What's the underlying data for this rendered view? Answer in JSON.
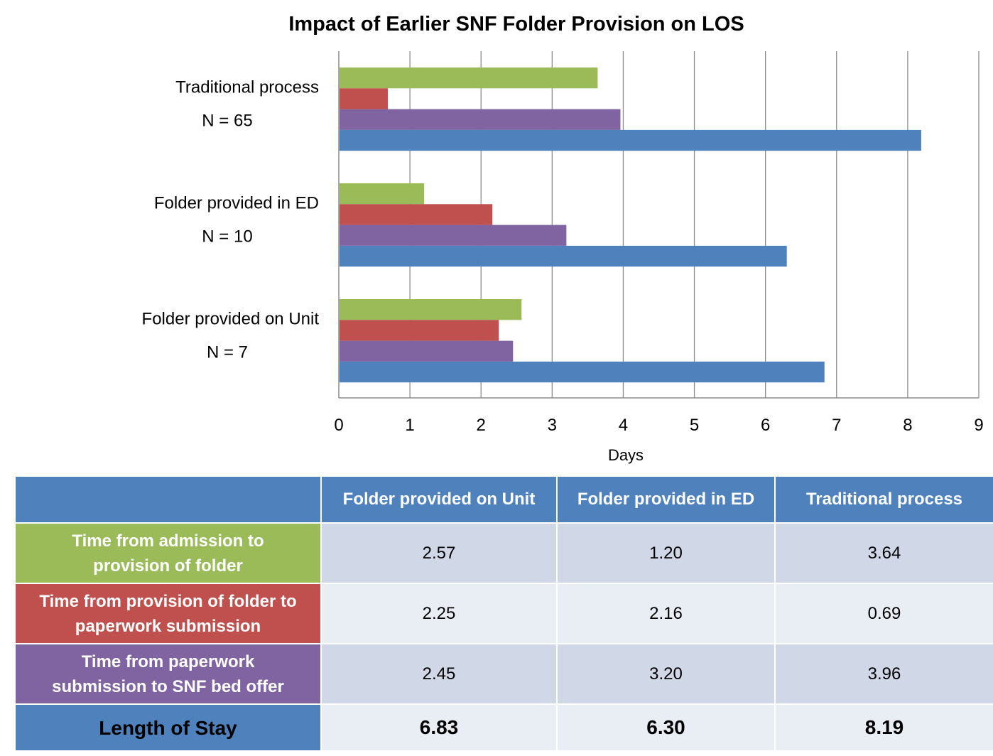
{
  "chart_data": {
    "type": "bar",
    "orientation": "horizontal",
    "title": "Impact of Earlier SNF Folder Provision on LOS",
    "xlabel": "Days",
    "ylabel": "",
    "xlim": [
      0,
      9
    ],
    "x_ticks": [
      "0",
      "1",
      "2",
      "3",
      "4",
      "5",
      "6",
      "7",
      "8",
      "9"
    ],
    "grid": "vertical",
    "legend": "none (table below acts as key)",
    "categories": [
      {
        "label": "Traditional process",
        "n_label": "N = 65"
      },
      {
        "label": "Folder provided in ED",
        "n_label": "N = 10"
      },
      {
        "label": "Folder provided on Unit",
        "n_label": "N = 7"
      }
    ],
    "series": [
      {
        "name": "Time from admission to provision of folder",
        "color": "#9bbb59",
        "values": [
          3.64,
          1.2,
          2.57
        ]
      },
      {
        "name": "Time from provision of folder to paperwork submission",
        "color": "#c0504d",
        "values": [
          0.69,
          2.16,
          2.25
        ]
      },
      {
        "name": "Time from paperwork submission to SNF bed offer",
        "color": "#8064a2",
        "values": [
          3.96,
          3.2,
          2.45
        ]
      },
      {
        "name": "Length of Stay",
        "color": "#4f81bd",
        "values": [
          8.19,
          6.3,
          6.83
        ]
      }
    ]
  },
  "table": {
    "corner": "",
    "columns": [
      "Folder provided on Unit",
      "Folder provided in ED",
      "Traditional process"
    ],
    "rows": [
      {
        "label": "Time from admission to provision of folder",
        "label_lines": [
          "Time from admission to",
          "provision of folder"
        ],
        "color": "#9bbb59",
        "values": [
          "2.57",
          "1.20",
          "3.64"
        ]
      },
      {
        "label": "Time from provision of folder to paperwork submission",
        "label_lines": [
          "Time from provision of folder to",
          "paperwork submission"
        ],
        "color": "#c0504d",
        "values": [
          "2.25",
          "2.16",
          "0.69"
        ]
      },
      {
        "label": "Time from paperwork submission to SNF bed offer",
        "label_lines": [
          "Time from paperwork",
          "submission to SNF bed offer"
        ],
        "color": "#8064a2",
        "values": [
          "2.45",
          "3.20",
          "3.96"
        ]
      },
      {
        "label": "Length of Stay",
        "label_lines": [
          "Length of Stay"
        ],
        "color": "#4f81bd",
        "values": [
          "6.83",
          "6.30",
          "8.19"
        ]
      }
    ]
  }
}
